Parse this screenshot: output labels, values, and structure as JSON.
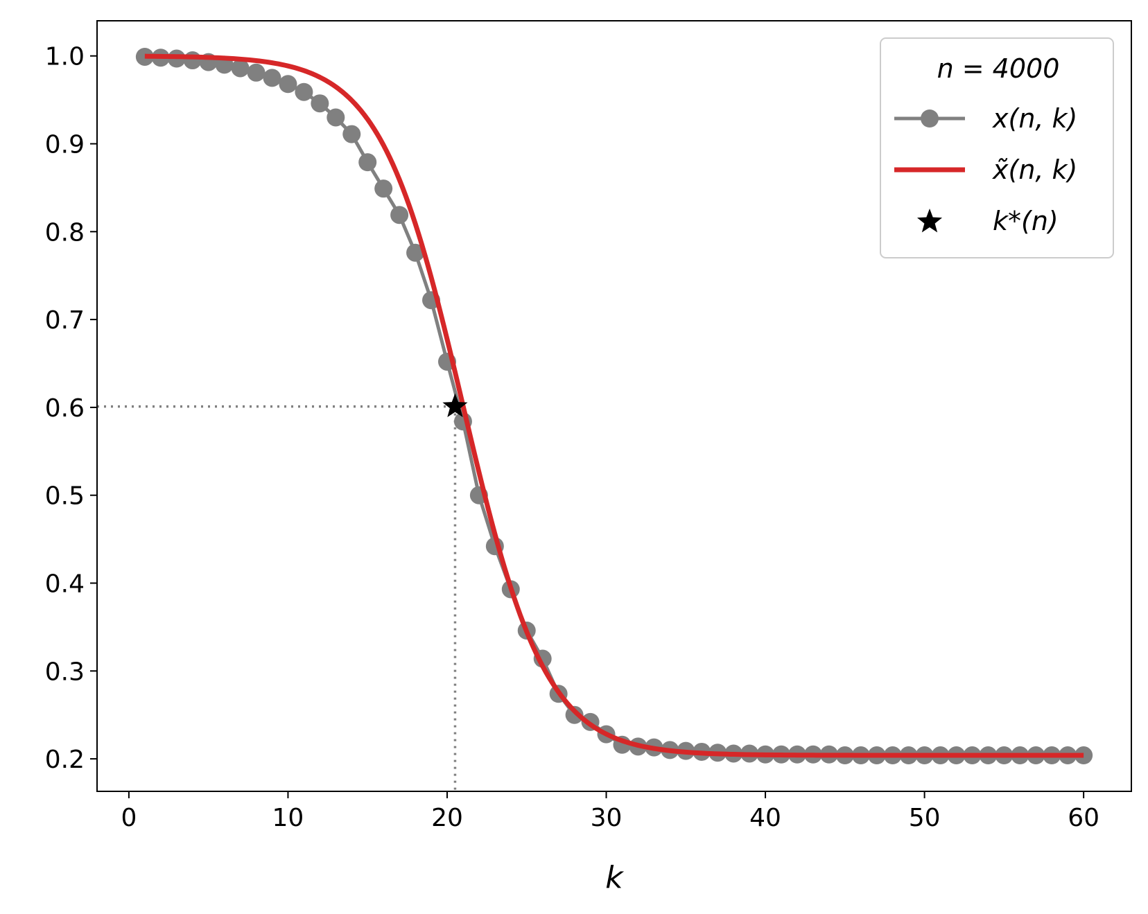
{
  "chart_data": {
    "type": "line",
    "title": "",
    "xlabel": "k",
    "ylabel": "",
    "xlim": [
      -2,
      63
    ],
    "ylim": [
      0.163,
      1.04
    ],
    "xticks": [
      0,
      10,
      20,
      30,
      40,
      50,
      60
    ],
    "xtick_labels": [
      "0",
      "10",
      "20",
      "30",
      "40",
      "50",
      "60"
    ],
    "yticks": [
      0.2,
      0.3,
      0.4,
      0.5,
      0.6,
      0.7,
      0.8,
      0.9,
      1.0
    ],
    "ytick_labels": [
      "0.2",
      "0.3",
      "0.4",
      "0.5",
      "0.6",
      "0.7",
      "0.8",
      "0.9",
      "1.0"
    ],
    "grid": false,
    "legend": {
      "placement": "top-right",
      "title": "n = 4000",
      "entries": [
        "x(n, k)",
        "x̃(n, k)",
        "k*(n)"
      ]
    },
    "series": [
      {
        "name": "x(n, k)",
        "style": "line-markers",
        "color": "#808080",
        "x": [
          1,
          2,
          3,
          4,
          5,
          6,
          7,
          8,
          9,
          10,
          11,
          12,
          13,
          14,
          15,
          16,
          17,
          18,
          19,
          20,
          21,
          22,
          23,
          24,
          25,
          26,
          27,
          28,
          29,
          30,
          31,
          32,
          33,
          34,
          35,
          36,
          37,
          38,
          39,
          40,
          41,
          42,
          43,
          44,
          45,
          46,
          47,
          48,
          49,
          50,
          51,
          52,
          53,
          54,
          55,
          56,
          57,
          58,
          59,
          60
        ],
        "y": [
          0.999,
          0.998,
          0.997,
          0.995,
          0.993,
          0.99,
          0.986,
          0.981,
          0.975,
          0.968,
          0.959,
          0.946,
          0.93,
          0.911,
          0.879,
          0.849,
          0.819,
          0.776,
          0.722,
          0.652,
          0.584,
          0.5,
          0.442,
          0.393,
          0.346,
          0.314,
          0.274,
          0.25,
          0.242,
          0.228,
          0.216,
          0.214,
          0.213,
          0.21,
          0.209,
          0.208,
          0.207,
          0.206,
          0.206,
          0.205,
          0.205,
          0.205,
          0.205,
          0.205,
          0.204,
          0.204,
          0.204,
          0.204,
          0.204,
          0.204,
          0.204,
          0.204,
          0.204,
          0.204,
          0.204,
          0.204,
          0.204,
          0.204,
          0.204,
          0.204
        ]
      },
      {
        "name": "x̃(n, k)",
        "style": "line",
        "color": "#d62728",
        "model": {
          "lower": 0.204,
          "upper": 1.0,
          "center": 21.0,
          "scale": 2.6
        }
      },
      {
        "name": "k*(n)",
        "style": "star",
        "color": "#000000",
        "x": [
          20.5
        ],
        "y": [
          0.601
        ]
      }
    ],
    "reference_lines": {
      "style": "dotted",
      "color": "#808080",
      "point": {
        "x": 20.5,
        "y": 0.601
      }
    }
  }
}
